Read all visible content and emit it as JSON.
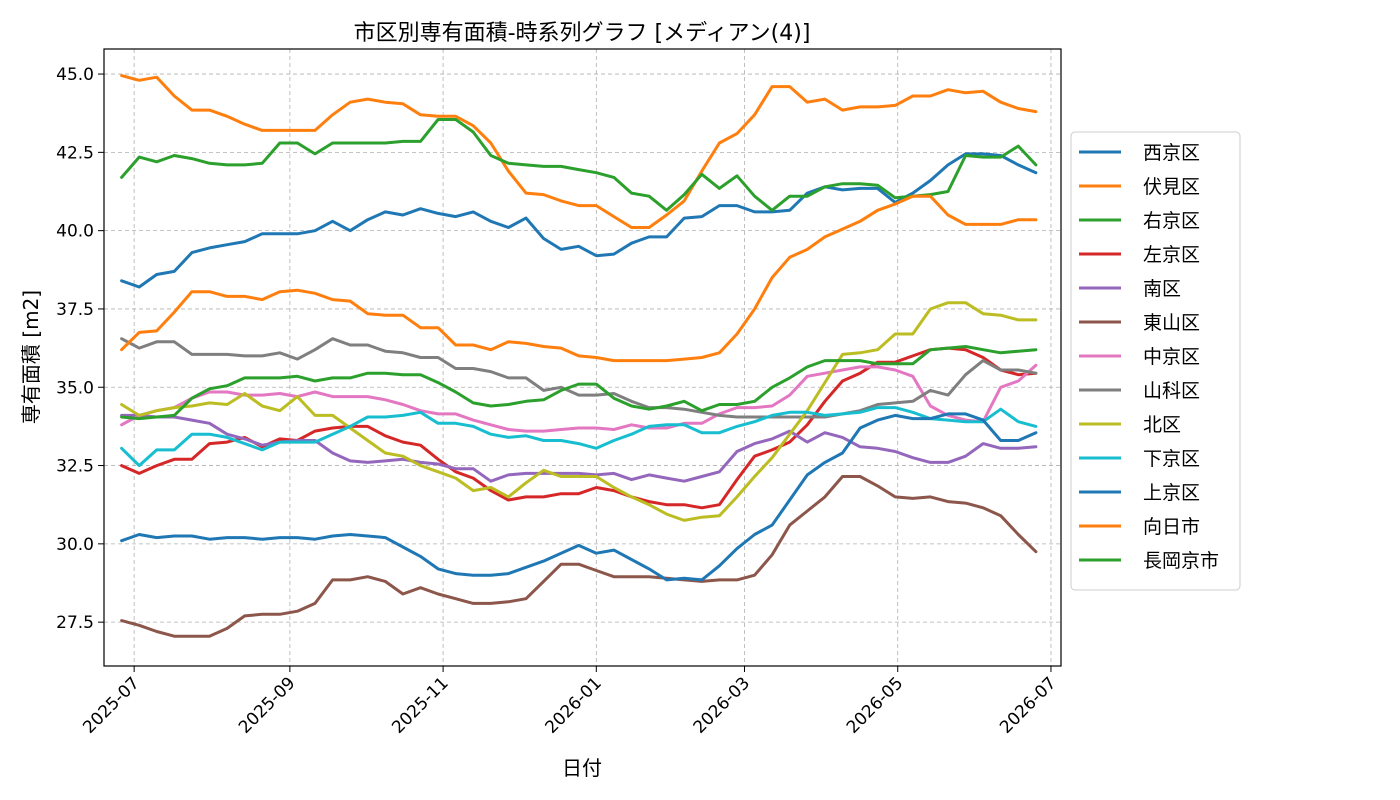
{
  "chart_data": {
    "type": "line",
    "title": "市区別専有面積-時系列グラフ [メディアン(4)]",
    "xlabel": "日付",
    "ylabel": "専有面積 [m2]",
    "xlim": [
      "2025-06-19",
      "2026-07-05"
    ],
    "ylim": [
      26.1,
      45.8
    ],
    "yticks": [
      27.5,
      30.0,
      32.5,
      35.0,
      37.5,
      40.0,
      42.5,
      45.0
    ],
    "ytick_labels": [
      "27.5",
      "30.0",
      "32.5",
      "35.0",
      "37.5",
      "40.0",
      "42.5",
      "45.0"
    ],
    "xticks": [
      "2025-07-01",
      "2025-09-01",
      "2025-11-01",
      "2026-01-01",
      "2026-03-01",
      "2026-05-01",
      "2026-07-01"
    ],
    "xtick_labels": [
      "2025-07",
      "2025-09",
      "2025-11",
      "2026-01",
      "2026-03",
      "2026-05",
      "2026-07"
    ],
    "grid": true,
    "legend_position": "right",
    "start_date": "2025-06-26",
    "step_days": 7,
    "series": [
      {
        "name": "西京区",
        "color": "#1f77b4",
        "values": [
          38.4,
          38.2,
          38.6,
          38.7,
          39.3,
          39.45,
          39.55,
          39.65,
          39.9,
          39.9,
          39.9,
          40.0,
          40.3,
          40.0,
          40.35,
          40.6,
          40.5,
          40.7,
          40.55,
          40.45,
          40.6,
          40.3,
          40.1,
          40.4,
          39.75,
          39.4,
          39.5,
          39.2,
          39.25,
          39.6,
          39.8,
          39.8,
          40.4,
          40.45,
          40.8,
          40.8,
          40.6,
          40.6,
          40.65,
          41.2,
          41.4,
          41.3,
          41.35,
          41.35,
          40.9,
          41.2,
          41.6,
          42.1,
          42.45,
          42.45,
          42.4,
          42.1,
          41.85
        ]
      },
      {
        "name": "伏見区",
        "color": "#ff7f0e",
        "values": [
          44.95,
          44.8,
          44.9,
          44.3,
          43.85,
          43.85,
          43.65,
          43.4,
          43.2,
          43.2,
          43.2,
          43.2,
          43.7,
          44.1,
          44.2,
          44.1,
          44.05,
          43.7,
          43.65,
          43.65,
          43.35,
          42.8,
          41.9,
          41.2,
          41.15,
          40.95,
          40.8,
          40.8,
          40.45,
          40.1,
          40.1,
          40.5,
          40.95,
          41.9,
          42.8,
          43.1,
          43.7,
          44.6,
          44.6,
          44.1,
          44.2,
          43.85,
          43.95,
          43.95,
          44.0,
          44.3,
          44.3,
          44.5,
          44.4,
          44.45,
          44.1,
          43.9,
          43.8
        ]
      },
      {
        "name": "右京区",
        "color": "#2ca02c",
        "values": [
          41.7,
          42.35,
          42.2,
          42.4,
          42.3,
          42.15,
          42.1,
          42.1,
          42.15,
          42.8,
          42.8,
          42.45,
          42.8,
          42.8,
          42.8,
          42.8,
          42.85,
          42.85,
          43.55,
          43.55,
          43.15,
          42.4,
          42.15,
          42.1,
          42.05,
          42.05,
          41.95,
          41.85,
          41.7,
          41.2,
          41.1,
          40.65,
          41.15,
          41.8,
          41.35,
          41.75,
          41.1,
          40.65,
          41.1,
          41.1,
          41.4,
          41.5,
          41.5,
          41.45,
          41.05,
          41.1,
          41.15,
          41.25,
          42.4,
          42.35,
          42.35,
          42.7,
          42.1
        ]
      },
      {
        "name": "左京区",
        "color": "#d62728",
        "values": [
          32.5,
          32.25,
          32.5,
          32.7,
          32.7,
          33.2,
          33.25,
          33.4,
          33.1,
          33.35,
          33.3,
          33.6,
          33.7,
          33.75,
          33.75,
          33.45,
          33.25,
          33.15,
          32.7,
          32.3,
          32.1,
          31.7,
          31.4,
          31.5,
          31.5,
          31.6,
          31.6,
          31.8,
          31.7,
          31.5,
          31.35,
          31.25,
          31.25,
          31.15,
          31.25,
          32.05,
          32.8,
          33.0,
          33.25,
          33.8,
          34.55,
          35.2,
          35.45,
          35.8,
          35.8,
          36.0,
          36.2,
          36.25,
          36.2,
          35.95,
          35.55,
          35.4,
          35.45
        ]
      },
      {
        "name": "南区",
        "color": "#9467bd",
        "values": [
          34.1,
          34.1,
          34.05,
          34.05,
          33.95,
          33.85,
          33.5,
          33.35,
          33.15,
          33.25,
          33.3,
          33.3,
          32.9,
          32.65,
          32.6,
          32.65,
          32.7,
          32.6,
          32.55,
          32.4,
          32.4,
          32.0,
          32.2,
          32.25,
          32.25,
          32.25,
          32.25,
          32.2,
          32.25,
          32.05,
          32.2,
          32.1,
          32.0,
          32.15,
          32.3,
          32.95,
          33.2,
          33.35,
          33.6,
          33.25,
          33.55,
          33.4,
          33.1,
          33.05,
          32.95,
          32.75,
          32.6,
          32.6,
          32.8,
          33.2,
          33.05,
          33.05,
          33.1
        ]
      },
      {
        "name": "東山区",
        "color": "#8c564b",
        "values": [
          27.55,
          27.4,
          27.2,
          27.05,
          27.05,
          27.05,
          27.3,
          27.7,
          27.75,
          27.75,
          27.85,
          28.1,
          28.85,
          28.85,
          28.95,
          28.8,
          28.4,
          28.6,
          28.4,
          28.25,
          28.1,
          28.1,
          28.15,
          28.25,
          28.8,
          29.35,
          29.35,
          29.15,
          28.95,
          28.95,
          28.95,
          28.9,
          28.85,
          28.8,
          28.85,
          28.85,
          29.0,
          29.65,
          30.6,
          31.05,
          31.5,
          32.15,
          32.15,
          31.85,
          31.5,
          31.45,
          31.5,
          31.35,
          31.3,
          31.15,
          30.9,
          30.3,
          29.75
        ]
      },
      {
        "name": "中京区",
        "color": "#e377c2",
        "values": [
          33.8,
          34.1,
          34.25,
          34.35,
          34.65,
          34.85,
          34.85,
          34.75,
          34.75,
          34.8,
          34.7,
          34.85,
          34.7,
          34.7,
          34.7,
          34.6,
          34.45,
          34.25,
          34.15,
          34.15,
          33.95,
          33.8,
          33.65,
          33.6,
          33.6,
          33.65,
          33.7,
          33.7,
          33.65,
          33.8,
          33.7,
          33.7,
          33.85,
          33.85,
          34.15,
          34.35,
          34.35,
          34.4,
          34.75,
          35.35,
          35.45,
          35.55,
          35.65,
          35.65,
          35.55,
          35.35,
          34.4,
          34.1,
          33.95,
          33.9,
          35.0,
          35.2,
          35.7
        ]
      },
      {
        "name": "山科区",
        "color": "#7f7f7f",
        "values": [
          36.55,
          36.25,
          36.45,
          36.45,
          36.05,
          36.05,
          36.05,
          36.0,
          36.0,
          36.1,
          35.9,
          36.2,
          36.55,
          36.35,
          36.35,
          36.15,
          36.1,
          35.95,
          35.95,
          35.6,
          35.6,
          35.5,
          35.3,
          35.3,
          34.9,
          35.0,
          34.75,
          34.75,
          34.8,
          34.55,
          34.35,
          34.35,
          34.3,
          34.2,
          34.1,
          34.05,
          34.05,
          34.05,
          34.05,
          34.05,
          34.05,
          34.15,
          34.25,
          34.45,
          34.5,
          34.55,
          34.9,
          34.75,
          35.4,
          35.85,
          35.55,
          35.55,
          35.45
        ]
      },
      {
        "name": "北区",
        "color": "#bcbd22",
        "values": [
          34.45,
          34.1,
          34.25,
          34.35,
          34.4,
          34.5,
          34.45,
          34.8,
          34.4,
          34.25,
          34.7,
          34.1,
          34.1,
          33.7,
          33.3,
          32.9,
          32.8,
          32.5,
          32.3,
          32.1,
          31.7,
          31.8,
          31.5,
          31.95,
          32.35,
          32.15,
          32.15,
          32.15,
          31.8,
          31.5,
          31.25,
          30.95,
          30.75,
          30.85,
          30.9,
          31.5,
          32.15,
          32.75,
          33.5,
          34.25,
          35.15,
          36.05,
          36.1,
          36.2,
          36.7,
          36.7,
          37.5,
          37.7,
          37.7,
          37.35,
          37.3,
          37.15,
          37.15
        ]
      },
      {
        "name": "下京区",
        "color": "#17becf",
        "values": [
          33.05,
          32.5,
          33.0,
          33.0,
          33.5,
          33.5,
          33.4,
          33.2,
          33.0,
          33.25,
          33.25,
          33.25,
          33.5,
          33.75,
          34.05,
          34.05,
          34.1,
          34.2,
          33.85,
          33.85,
          33.75,
          33.5,
          33.4,
          33.45,
          33.3,
          33.3,
          33.2,
          33.05,
          33.3,
          33.5,
          33.75,
          33.8,
          33.8,
          33.55,
          33.55,
          33.75,
          33.9,
          34.1,
          34.2,
          34.2,
          34.1,
          34.15,
          34.2,
          34.35,
          34.35,
          34.2,
          34.0,
          33.95,
          33.9,
          33.9,
          34.3,
          33.9,
          33.75
        ]
      },
      {
        "name": "上京区",
        "color": "#1f77b4",
        "values": [
          30.1,
          30.3,
          30.2,
          30.25,
          30.25,
          30.15,
          30.2,
          30.2,
          30.15,
          30.2,
          30.2,
          30.15,
          30.25,
          30.3,
          30.25,
          30.2,
          29.9,
          29.6,
          29.2,
          29.05,
          29.0,
          29.0,
          29.05,
          29.25,
          29.45,
          29.7,
          29.95,
          29.7,
          29.8,
          29.5,
          29.2,
          28.85,
          28.9,
          28.85,
          29.3,
          29.85,
          30.3,
          30.6,
          31.4,
          32.2,
          32.6,
          32.9,
          33.7,
          33.95,
          34.1,
          34.0,
          34.0,
          34.15,
          34.15,
          33.95,
          33.3,
          33.3,
          33.55
        ]
      },
      {
        "name": "向日市",
        "color": "#ff7f0e",
        "values": [
          36.2,
          36.75,
          36.8,
          37.4,
          38.05,
          38.05,
          37.9,
          37.9,
          37.8,
          38.05,
          38.1,
          38.0,
          37.8,
          37.75,
          37.35,
          37.3,
          37.3,
          36.9,
          36.9,
          36.35,
          36.35,
          36.2,
          36.45,
          36.4,
          36.3,
          36.25,
          36.0,
          35.95,
          35.85,
          35.85,
          35.85,
          35.85,
          35.9,
          35.95,
          36.1,
          36.7,
          37.5,
          38.5,
          39.15,
          39.4,
          39.8,
          40.05,
          40.3,
          40.65,
          40.85,
          41.1,
          41.1,
          40.5,
          40.2,
          40.2,
          40.2,
          40.35,
          40.35
        ]
      },
      {
        "name": "長岡京市",
        "color": "#2ca02c",
        "values": [
          34.05,
          34.0,
          34.05,
          34.1,
          34.65,
          34.95,
          35.05,
          35.3,
          35.3,
          35.3,
          35.35,
          35.2,
          35.3,
          35.3,
          35.45,
          35.45,
          35.4,
          35.4,
          35.15,
          34.85,
          34.5,
          34.4,
          34.45,
          34.55,
          34.6,
          34.9,
          35.1,
          35.1,
          34.65,
          34.4,
          34.3,
          34.4,
          34.55,
          34.25,
          34.45,
          34.45,
          34.55,
          35.0,
          35.3,
          35.65,
          35.85,
          35.85,
          35.85,
          35.75,
          35.75,
          35.75,
          36.2,
          36.25,
          36.3,
          36.2,
          36.1,
          36.15,
          36.2
        ]
      }
    ]
  }
}
